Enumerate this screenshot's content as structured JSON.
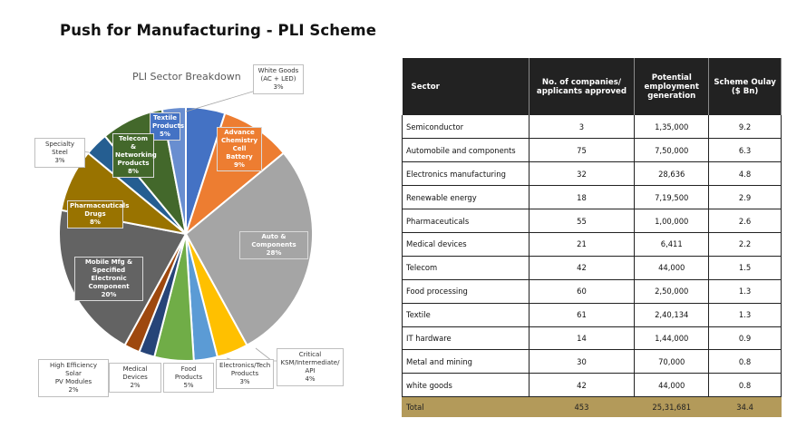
{
  "page": {
    "title": "Push for Manufacturing - PLI Scheme"
  },
  "chart_data": {
    "type": "pie",
    "title": "PLI Sector Breakdown",
    "slices": [
      {
        "label": "Textile Products",
        "value": 5,
        "pct": "5%",
        "color": "#4472C4"
      },
      {
        "label": "Advance Chemistry Cell Battery",
        "value": 9,
        "pct": "9%",
        "color": "#ED7D31"
      },
      {
        "label": "Auto & Components",
        "value": 28,
        "pct": "28%",
        "color": "#A5A5A5"
      },
      {
        "label": "Critical KSM/Intermediate/ API",
        "value": 4,
        "pct": "4%",
        "color": "#FFC000"
      },
      {
        "label": "Electronics/Tech Products",
        "value": 3,
        "pct": "3%",
        "color": "#5B9BD5"
      },
      {
        "label": "Food Products",
        "value": 5,
        "pct": "5%",
        "color": "#70AD47"
      },
      {
        "label": "Medical Devices",
        "value": 2,
        "pct": "2%",
        "color": "#264478"
      },
      {
        "label": "High Efficiency Solar PV Modules",
        "value": 2,
        "pct": "2%",
        "color": "#9E480E"
      },
      {
        "label": "Mobile Mfg & Specified Electronic Component",
        "value": 20,
        "pct": "20%",
        "color": "#636363"
      },
      {
        "label": "Pharmaceuticals Drugs",
        "value": 8,
        "pct": "8%",
        "color": "#997300"
      },
      {
        "label": "Specialty Steel",
        "value": 3,
        "pct": "3%",
        "color": "#255E91"
      },
      {
        "label": "Telecom & Networking Products",
        "value": 8,
        "pct": "8%",
        "color": "#43682B"
      },
      {
        "label": "White Goods (AC + LED)",
        "value": 3,
        "pct": "3%",
        "color": "#698ED0"
      }
    ]
  },
  "callouts": {
    "white_goods": {
      "line1": "White Goods",
      "line2": "(AC + LED)",
      "pct": "3%"
    },
    "textile": {
      "line1": "Textile",
      "line2": "Products",
      "pct": "5%"
    },
    "acc_battery": {
      "line1": "Advance",
      "line2": "Chemistry",
      "line3": "Cell Battery",
      "pct": "9%"
    },
    "auto": {
      "line1": "Auto & Components",
      "pct": "28%"
    },
    "critical": {
      "line1": "Critical",
      "line2": "KSM/Intermediate/",
      "line3": "API",
      "pct": "4%"
    },
    "electronics_tech": {
      "line1": "Electronics/Tech",
      "line2": "Products",
      "pct": "3%"
    },
    "food": {
      "line1": "Food Products",
      "pct": "5%"
    },
    "medical": {
      "line1": "Medical Devices",
      "pct": "2%"
    },
    "solar": {
      "line1": "High Efficiency Solar",
      "line2": "PV Modules",
      "pct": "2%"
    },
    "mobile": {
      "line1": "Mobile Mfg &",
      "line2": "Specified Electronic",
      "line3": "Component",
      "pct": "20%"
    },
    "pharma": {
      "line1": "Pharmaceuticals",
      "line2": "Drugs",
      "pct": "8%"
    },
    "steel": {
      "line1": "Specialty Steel",
      "pct": "3%"
    },
    "telecom": {
      "line1": "Telecom &",
      "line2": "Networking",
      "line3": "Products",
      "pct": "8%"
    }
  },
  "table": {
    "headers": [
      "Sector",
      "No. of companies/ applicants approved",
      "Potential employment generation",
      "Scheme Oulay ($ Bn)"
    ],
    "rows": [
      [
        "Semiconductor",
        "3",
        "1,35,000",
        "9.2"
      ],
      [
        "Automobile and components",
        "75",
        "7,50,000",
        "6.3"
      ],
      [
        "Electronics manufacturing",
        "32",
        "28,636",
        "4.8"
      ],
      [
        "Renewable energy",
        "18",
        "7,19,500",
        "2.9"
      ],
      [
        "Pharmaceuticals",
        "55",
        "1,00,000",
        "2.6"
      ],
      [
        "Medical devices",
        "21",
        "6,411",
        "2.2"
      ],
      [
        "Telecom",
        "42",
        "44,000",
        "1.5"
      ],
      [
        "Food processing",
        "60",
        "2,50,000",
        "1.3"
      ],
      [
        "Textile",
        "61",
        "2,40,134",
        "1.3"
      ],
      [
        "IT hardware",
        "14",
        "1,44,000",
        "0.9"
      ],
      [
        "Metal and mining",
        "30",
        "70,000",
        "0.8"
      ],
      [
        "white goods",
        "42",
        "44,000",
        "0.8"
      ]
    ],
    "total": [
      "Total",
      "453",
      "25,31,681",
      "34.4"
    ]
  }
}
